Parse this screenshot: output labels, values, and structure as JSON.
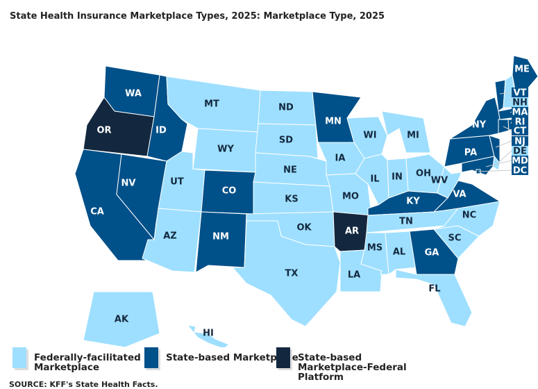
{
  "title": "State Health Insurance Marketplace Types, 2025: Marketplace Type, 2025",
  "source": "SOURCE: KFF's State Health Facts.",
  "colors": {
    "Federally-facilitated Marketplace": "#9edfff",
    "State-based Marketplace": "#005089",
    "State-based Marketplace-Federal Platform": "#13283f"
  },
  "legend": [
    {
      "label_lines": [
        "Federally-facilitated",
        "Marketplace"
      ],
      "category": "Federally-facilitated Marketplace"
    },
    {
      "label_lines": [
        "State-based Marketplace"
      ],
      "category": "State-based Marketplace"
    },
    {
      "label_lines": [
        "State-based",
        "Marketplace-Federal",
        "Platform"
      ],
      "category": "State-based Marketplace-Federal Platform"
    }
  ],
  "states": {
    "AK": "F",
    "AL": "F",
    "AZ": "F",
    "FL": "F",
    "HI": "F",
    "IL": "F",
    "IN": "F",
    "IA": "F",
    "KS": "F",
    "LA": "F",
    "MI": "F",
    "MS": "F",
    "MO": "F",
    "MT": "F",
    "NE": "F",
    "NH": "F",
    "NC": "F",
    "ND": "F",
    "OH": "F",
    "OK": "F",
    "SC": "F",
    "SD": "F",
    "TN": "F",
    "TX": "F",
    "UT": "F",
    "WV": "F",
    "WI": "F",
    "WY": "F",
    "DE": "F",
    "CA": "S",
    "CO": "S",
    "CT": "S",
    "DC": "S",
    "GA": "S",
    "ID": "S",
    "KY": "S",
    "ME": "S",
    "MD": "S",
    "MA": "S",
    "MN": "S",
    "NV": "S",
    "NJ": "S",
    "NM": "S",
    "NY": "S",
    "PA": "S",
    "RI": "S",
    "VT": "S",
    "VA": "S",
    "WA": "S",
    "AR": "P",
    "OR": "P"
  },
  "category_codes": {
    "F": "Federally-facilitated Marketplace",
    "S": "State-based Marketplace",
    "P": "State-based Marketplace-Federal Platform"
  }
}
